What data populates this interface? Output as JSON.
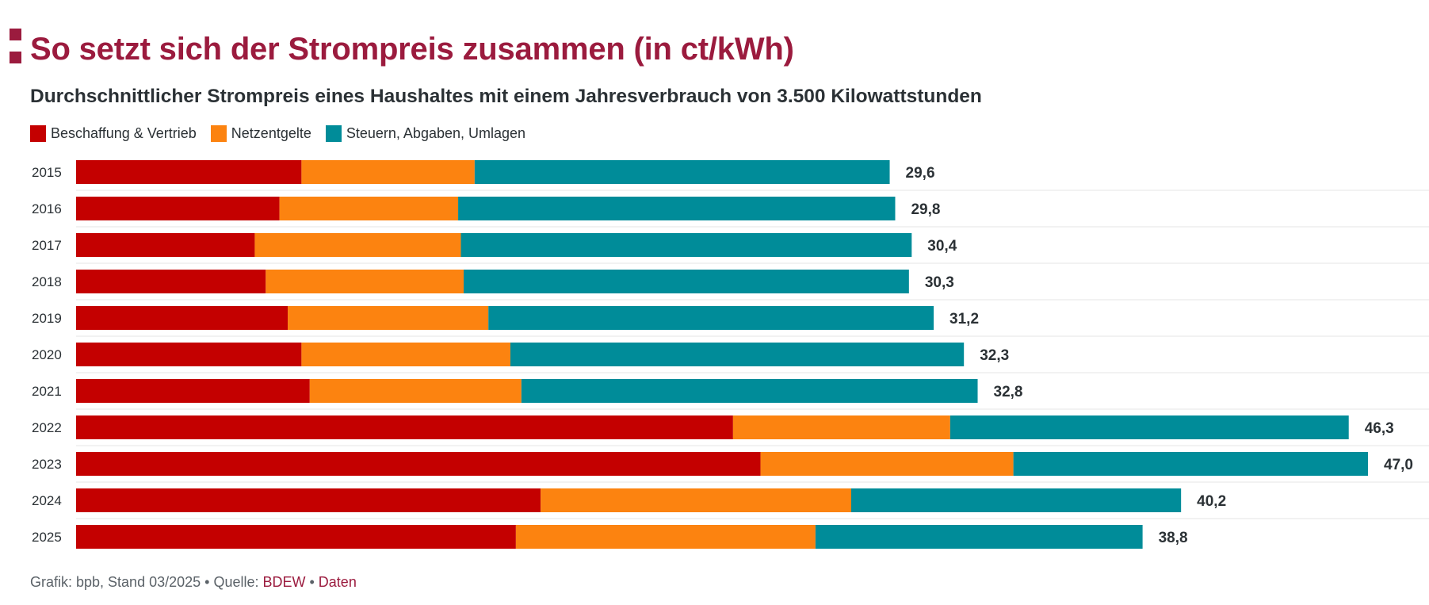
{
  "header": {
    "title": "So setzt sich der Strompreis zusammen (in ct/kWh)",
    "subtitle": "Durchschnittlicher Strompreis eines Haushaltes mit einem Jahresverbrauch von 3.500 Kilowattstunden"
  },
  "legend": [
    {
      "label": "Beschaffung & Vertrieb",
      "color": "#c40000"
    },
    {
      "label": "Netzentgelte",
      "color": "#fc8310"
    },
    {
      "label": "Steuern, Abgaben, Umlagen",
      "color": "#008c99"
    }
  ],
  "footer": {
    "prefix": "Grafik: bpb, Stand 03/2025 • Quelle: ",
    "source_link": "BDEW",
    "separator": " • ",
    "data_link": "Daten"
  },
  "chart_data": {
    "type": "bar",
    "orientation": "horizontal",
    "stacked": true,
    "title": "So setzt sich der Strompreis zusammen (in ct/kWh)",
    "subtitle": "Durchschnittlicher Strompreis eines Haushaltes mit einem Jahresverbrauch von 3.500 Kilowattstunden",
    "categories": [
      "2015",
      "2016",
      "2017",
      "2018",
      "2019",
      "2020",
      "2021",
      "2022",
      "2023",
      "2024",
      "2025"
    ],
    "series": [
      {
        "name": "Beschaffung & Vertrieb",
        "color": "#c40000",
        "values": [
          8.2,
          7.4,
          6.5,
          6.9,
          7.7,
          8.2,
          8.5,
          23.9,
          24.9,
          16.9,
          16.0
        ]
      },
      {
        "name": "Netzentgelte",
        "color": "#fc8310",
        "values": [
          6.3,
          6.5,
          7.5,
          7.2,
          7.3,
          7.6,
          7.7,
          7.9,
          9.2,
          11.3,
          10.9
        ]
      },
      {
        "name": "Steuern, Abgaben, Umlagen",
        "color": "#008c99",
        "values": [
          15.1,
          15.9,
          16.4,
          16.2,
          16.2,
          16.5,
          16.6,
          14.5,
          12.9,
          12.0,
          11.9
        ]
      }
    ],
    "totals": [
      "29,6",
      "29,8",
      "30,4",
      "30,3",
      "31,2",
      "32,3",
      "32,8",
      "46,3",
      "47,0",
      "40,2",
      "38,8"
    ],
    "xlim": [
      0,
      47
    ],
    "grid": false,
    "legend_position": "top-left"
  }
}
